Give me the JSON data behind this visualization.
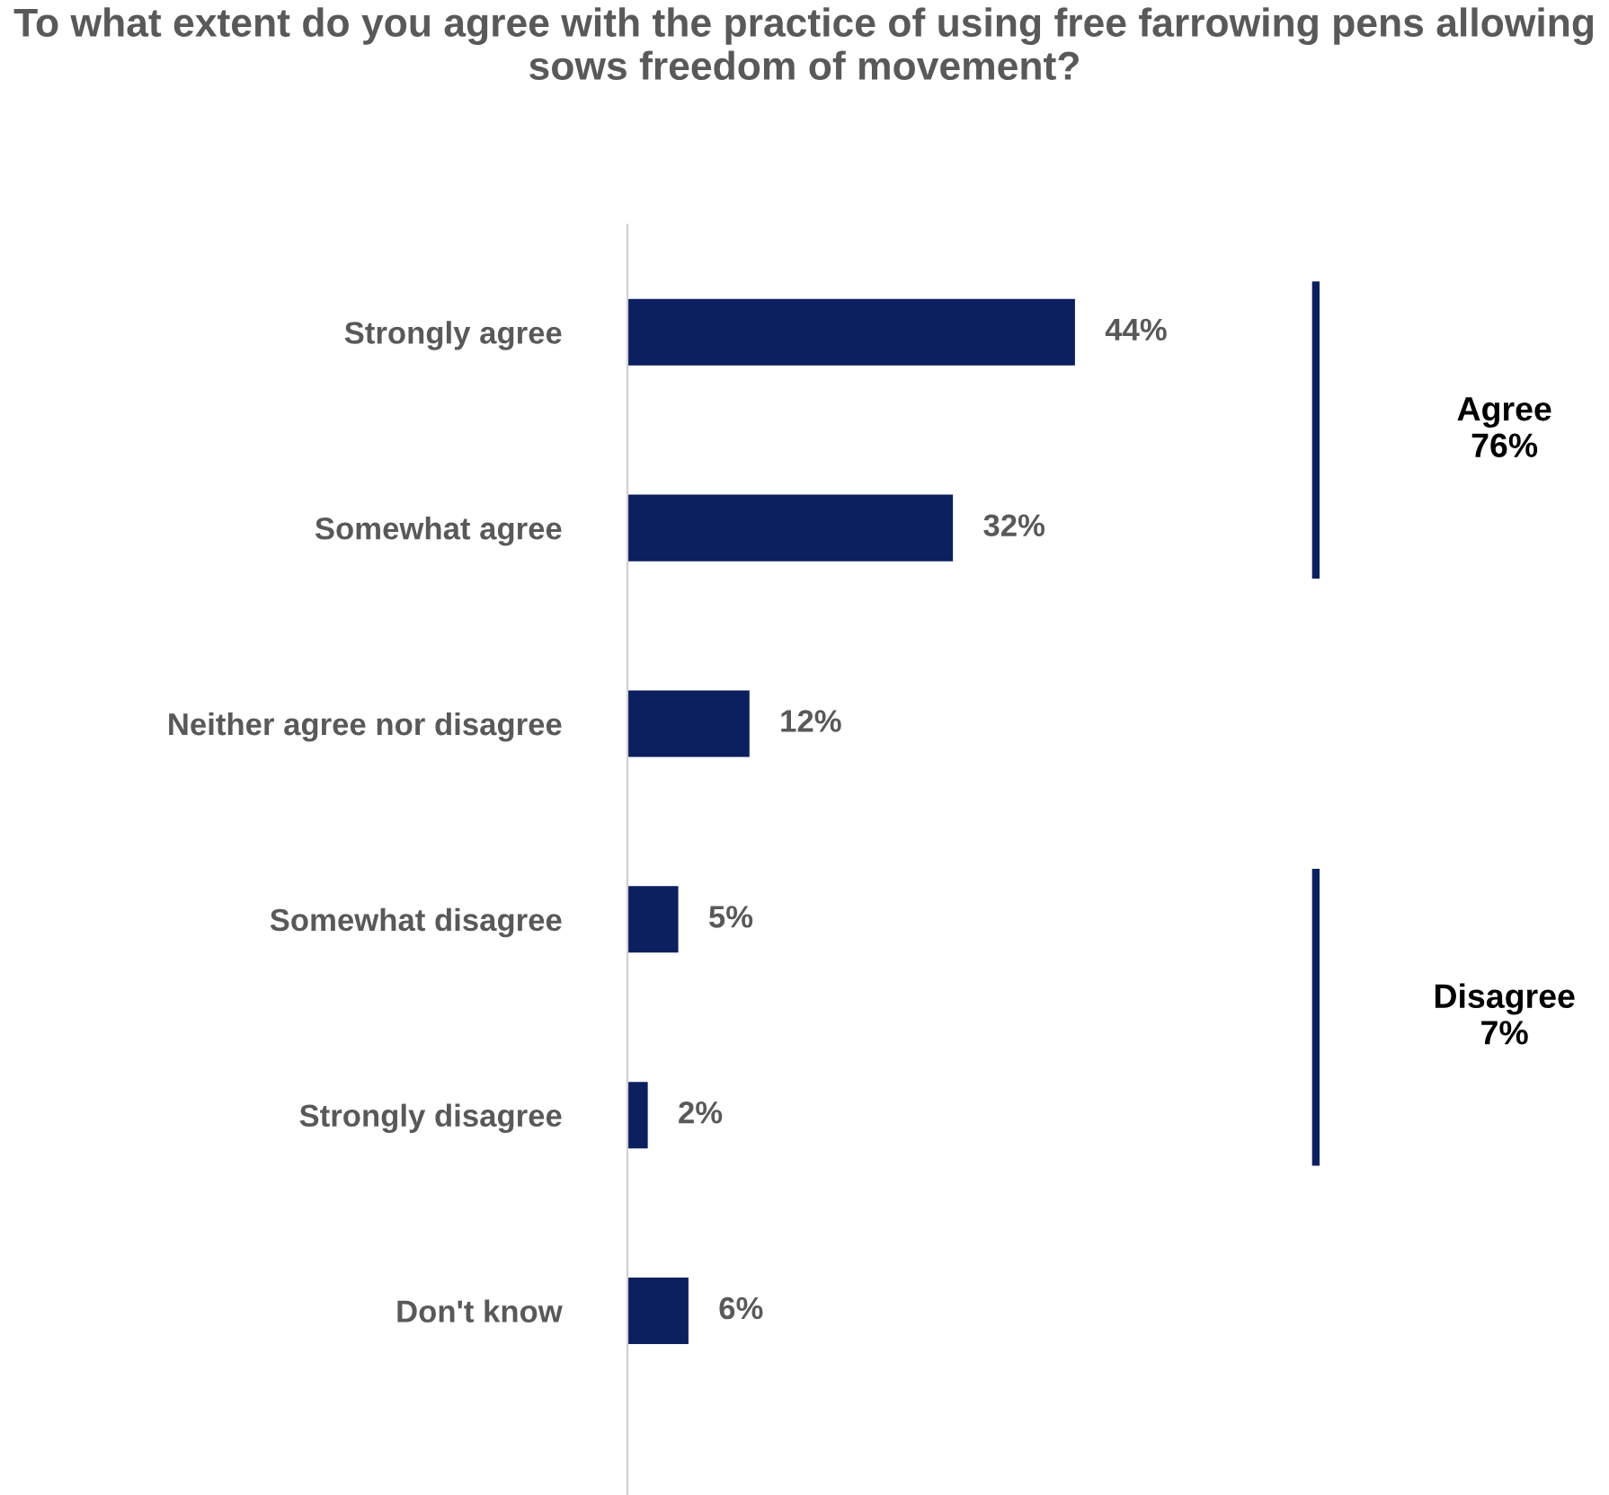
{
  "chart_data": {
    "type": "bar",
    "orientation": "horizontal",
    "title": "To what extent do you agree with the practice of using free farrowing pens allowing sows freedom of movement?",
    "categories": [
      "Strongly agree",
      "Somewhat agree",
      "Neither agree nor disagree",
      "Somewhat disagree",
      "Strongly disagree",
      "Don't know"
    ],
    "values": [
      44,
      32,
      12,
      5,
      2,
      6
    ],
    "value_labels": [
      "44%",
      "32%",
      "12%",
      "5%",
      "2%",
      "6%"
    ],
    "color": "#0c1f5e",
    "annotations": [
      "Agree\n76%",
      "Disagree\n7%"
    ],
    "grid": false,
    "legend": false
  }
}
